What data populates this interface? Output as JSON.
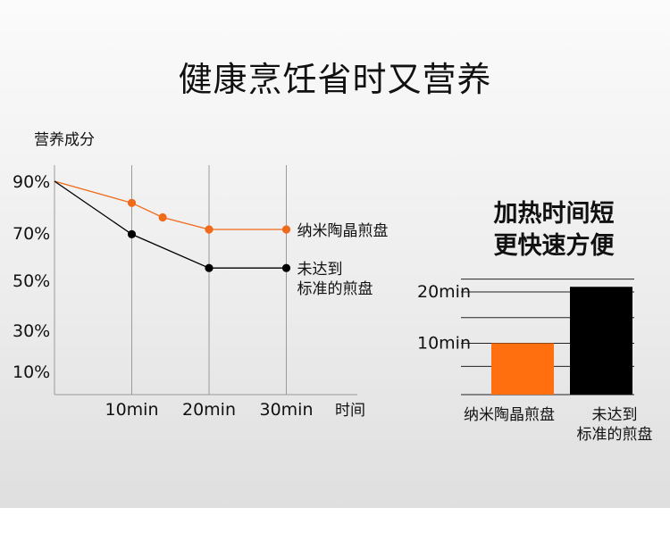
{
  "title": "健康烹饪省时又营养",
  "chart_data": [
    {
      "type": "line",
      "ylabel": "营养成分",
      "xlabel": "时间",
      "x": [
        0,
        10,
        14,
        20,
        30
      ],
      "x_tick_labels": [
        "10min",
        "20min",
        "30min"
      ],
      "x_ticks": [
        10,
        20,
        30
      ],
      "y_tick_labels": [
        "90%",
        "70%",
        "50%",
        "30%",
        "10%"
      ],
      "grid": "vertical",
      "series": [
        {
          "name": "纳米陶晶煎盘",
          "color": "#ef6a1a",
          "points": [
            [
              0,
              90
            ],
            [
              10,
              81
            ],
            [
              14,
              75
            ],
            [
              20,
              70
            ],
            [
              30,
              70
            ]
          ]
        },
        {
          "name": "未达到标准的煎盘",
          "label_lines": [
            "未达到",
            "标准的煎盘"
          ],
          "color": "#000000",
          "points": [
            [
              0,
              90
            ],
            [
              10,
              68
            ],
            [
              20,
              54
            ],
            [
              30,
              54
            ]
          ]
        }
      ]
    },
    {
      "type": "bar",
      "title_lines": [
        "加热时间短",
        "更快速方便"
      ],
      "categories": [
        "纳米陶晶煎盘",
        "未达到标准的煎盘"
      ],
      "category_label_lines": [
        [
          "纳米陶晶煎盘"
        ],
        [
          "未达到",
          "标准的煎盘"
        ]
      ],
      "values": [
        10,
        21
      ],
      "colors": [
        "#ff6f0f",
        "#000000"
      ],
      "y_tick_labels": [
        "20min",
        "10min"
      ],
      "y_ticks": [
        20,
        10
      ],
      "grid": "horizontal",
      "ylim": [
        0,
        26
      ]
    }
  ]
}
